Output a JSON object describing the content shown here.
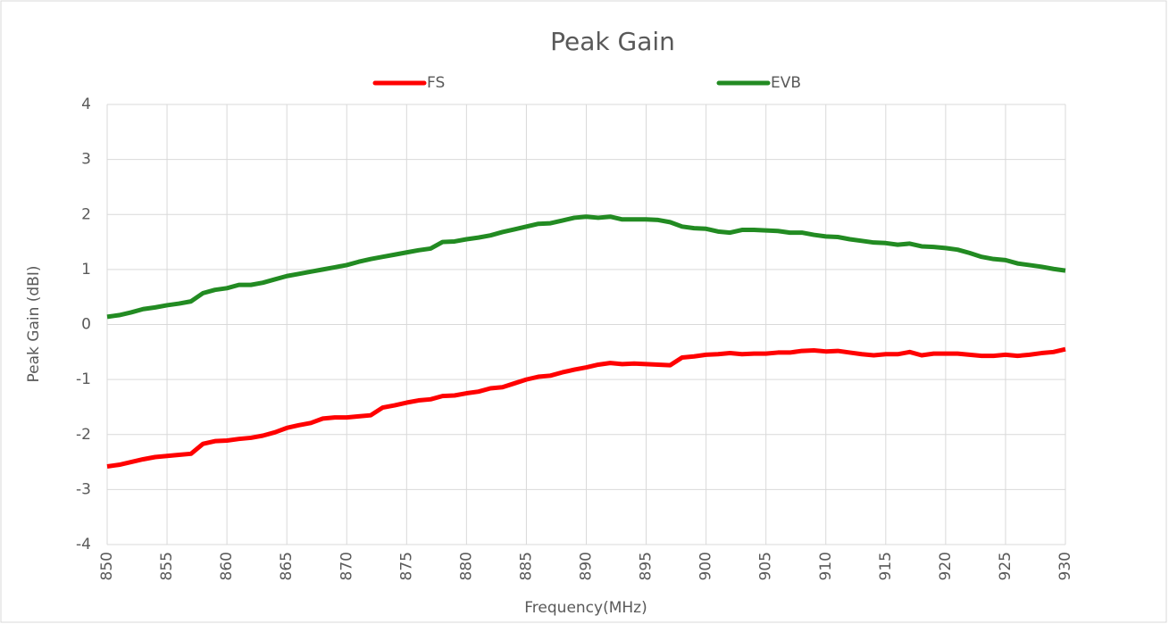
{
  "chart_data": {
    "type": "line",
    "title": "Peak Gain",
    "xlabel": "Frequency(MHz)",
    "ylabel": "Peak Gain (dBI)",
    "x": [
      850,
      851,
      852,
      853,
      854,
      855,
      856,
      857,
      858,
      859,
      860,
      861,
      862,
      863,
      864,
      865,
      866,
      867,
      868,
      869,
      870,
      871,
      872,
      873,
      874,
      875,
      876,
      877,
      878,
      879,
      880,
      881,
      882,
      883,
      884,
      885,
      886,
      887,
      888,
      889,
      890,
      891,
      892,
      893,
      894,
      895,
      896,
      897,
      898,
      899,
      900,
      901,
      902,
      903,
      904,
      905,
      906,
      907,
      908,
      909,
      910,
      911,
      912,
      913,
      914,
      915,
      916,
      917,
      918,
      919,
      920,
      921,
      922,
      923,
      924,
      925,
      926,
      927,
      928,
      929,
      930
    ],
    "series": [
      {
        "name": "FS",
        "color": "#ff0000",
        "values": [
          -2.58,
          -2.55,
          -2.5,
          -2.45,
          -2.41,
          -2.39,
          -2.37,
          -2.35,
          -2.17,
          -2.12,
          -2.11,
          -2.08,
          -2.06,
          -2.02,
          -1.96,
          -1.88,
          -1.83,
          -1.79,
          -1.71,
          -1.69,
          -1.69,
          -1.67,
          -1.65,
          -1.51,
          -1.47,
          -1.42,
          -1.38,
          -1.36,
          -1.3,
          -1.29,
          -1.25,
          -1.22,
          -1.16,
          -1.14,
          -1.07,
          -1.0,
          -0.95,
          -0.93,
          -0.87,
          -0.82,
          -0.78,
          -0.73,
          -0.7,
          -0.72,
          -0.71,
          -0.72,
          -0.73,
          -0.74,
          -0.6,
          -0.58,
          -0.55,
          -0.54,
          -0.52,
          -0.54,
          -0.53,
          -0.53,
          -0.51,
          -0.51,
          -0.48,
          -0.47,
          -0.49,
          -0.48,
          -0.51,
          -0.54,
          -0.56,
          -0.54,
          -0.54,
          -0.5,
          -0.56,
          -0.53,
          -0.53,
          -0.53,
          -0.55,
          -0.57,
          -0.57,
          -0.55,
          -0.57,
          -0.55,
          -0.52,
          -0.5,
          -0.45
        ]
      },
      {
        "name": "EVB",
        "color": "#228b22",
        "values": [
          0.14,
          0.17,
          0.22,
          0.28,
          0.31,
          0.35,
          0.38,
          0.42,
          0.57,
          0.63,
          0.66,
          0.72,
          0.72,
          0.76,
          0.82,
          0.88,
          0.92,
          0.96,
          1.0,
          1.04,
          1.08,
          1.14,
          1.19,
          1.23,
          1.27,
          1.31,
          1.35,
          1.38,
          1.5,
          1.51,
          1.55,
          1.58,
          1.62,
          1.68,
          1.73,
          1.78,
          1.83,
          1.84,
          1.89,
          1.94,
          1.96,
          1.94,
          1.96,
          1.91,
          1.91,
          1.91,
          1.9,
          1.86,
          1.78,
          1.75,
          1.74,
          1.69,
          1.67,
          1.72,
          1.72,
          1.71,
          1.7,
          1.67,
          1.67,
          1.63,
          1.6,
          1.59,
          1.55,
          1.52,
          1.49,
          1.48,
          1.45,
          1.47,
          1.42,
          1.41,
          1.39,
          1.36,
          1.3,
          1.23,
          1.19,
          1.17,
          1.11,
          1.08,
          1.05,
          1.01,
          0.98
        ]
      }
    ],
    "xlim": [
      850,
      930
    ],
    "xticks": [
      850,
      855,
      860,
      865,
      870,
      875,
      880,
      885,
      890,
      895,
      900,
      905,
      910,
      915,
      920,
      925,
      930
    ],
    "ylim": [
      -4,
      4
    ],
    "yticks": [
      -4,
      -3,
      -2,
      -1,
      0,
      1,
      2,
      3,
      4
    ],
    "grid": true,
    "legend": "top"
  }
}
